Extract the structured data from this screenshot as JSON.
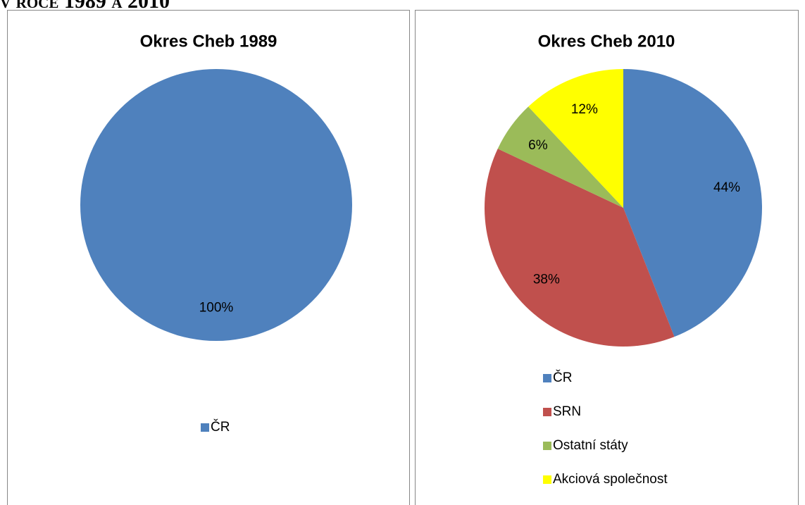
{
  "header": "v roce 1989 a 2010",
  "chart_data": [
    {
      "type": "pie",
      "title": "Okres Cheb 1989",
      "categories": [
        "ČR"
      ],
      "values": [
        100
      ],
      "value_labels": [
        "100%"
      ],
      "colors": [
        "#4f81bd"
      ]
    },
    {
      "type": "pie",
      "title": "Okres Cheb 2010",
      "categories": [
        "ČR",
        "SRN",
        "Ostatní státy",
        "Akciová společnost"
      ],
      "values": [
        44,
        38,
        6,
        12
      ],
      "value_labels": [
        "44%",
        "38%",
        "6%",
        "12%"
      ],
      "colors": [
        "#4f81bd",
        "#c0504d",
        "#9bbb59",
        "#ffff00"
      ]
    }
  ]
}
